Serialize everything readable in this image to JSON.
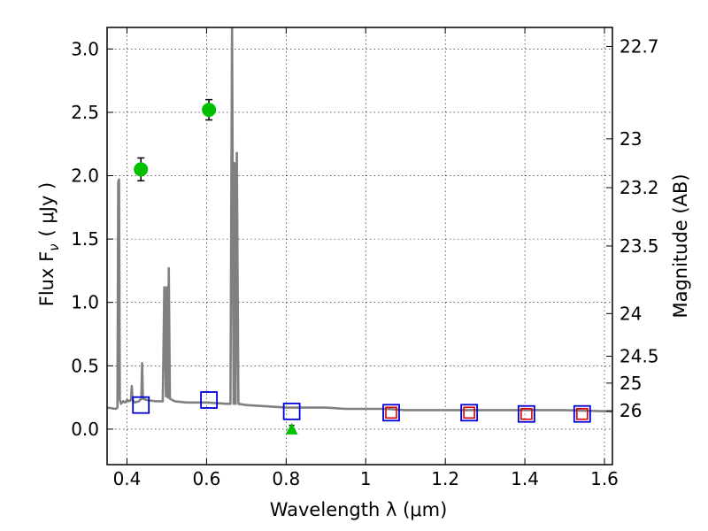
{
  "chart_data": {
    "type": "scatter",
    "xlabel": "Wavelength  λ (μm)",
    "ylabel": "Flux  F",
    "ylabel_sub": "ν",
    "ylabel_unit": "( μJy )",
    "ylabel_right": "Magnitude (AB)",
    "xlim": [
      0.35,
      1.62
    ],
    "ylim": [
      -0.28,
      3.17
    ],
    "grid": true,
    "x_ticks": [
      {
        "value": 0.4,
        "label": "0.4"
      },
      {
        "value": 0.6,
        "label": "0.6"
      },
      {
        "value": 0.8,
        "label": "0.8"
      },
      {
        "value": 1.0,
        "label": "1"
      },
      {
        "value": 1.2,
        "label": "1.2"
      },
      {
        "value": 1.4,
        "label": "1.4"
      },
      {
        "value": 1.6,
        "label": "1.6"
      }
    ],
    "y_ticks": [
      {
        "value": 0.0,
        "label": "0.0"
      },
      {
        "value": 0.5,
        "label": "0.5"
      },
      {
        "value": 1.0,
        "label": "1.0"
      },
      {
        "value": 1.5,
        "label": "1.5"
      },
      {
        "value": 2.0,
        "label": "2.0"
      },
      {
        "value": 2.5,
        "label": "2.5"
      },
      {
        "value": 3.0,
        "label": "3.0"
      }
    ],
    "right_ticks": [
      {
        "mag": 22.7,
        "label": "22.7"
      },
      {
        "mag": 23.0,
        "label": "23"
      },
      {
        "mag": 23.2,
        "label": "23.2"
      },
      {
        "mag": 23.5,
        "label": "23.5"
      },
      {
        "mag": 24.0,
        "label": "24"
      },
      {
        "mag": 24.5,
        "label": "24.5"
      },
      {
        "mag": 25.0,
        "label": "25"
      },
      {
        "mag": 26.0,
        "label": "26"
      }
    ],
    "colors": {
      "spectrum": "#808080",
      "observed": "#00c000",
      "model_box": "#0000dd",
      "model_small_box": "#dd0000"
    },
    "series": [
      {
        "name": "model spectrum",
        "kind": "line",
        "points": [
          [
            0.35,
            0.17
          ],
          [
            0.372,
            0.16
          ],
          [
            0.376,
            0.17
          ],
          [
            0.378,
            1.95
          ],
          [
            0.38,
            1.97
          ],
          [
            0.382,
            0.23
          ],
          [
            0.385,
            0.2
          ],
          [
            0.39,
            0.22
          ],
          [
            0.395,
            0.21
          ],
          [
            0.4,
            0.23
          ],
          [
            0.405,
            0.22
          ],
          [
            0.41,
            0.23
          ],
          [
            0.412,
            0.34
          ],
          [
            0.414,
            0.23
          ],
          [
            0.42,
            0.21
          ],
          [
            0.43,
            0.22
          ],
          [
            0.436,
            0.24
          ],
          [
            0.438,
            0.52
          ],
          [
            0.44,
            0.24
          ],
          [
            0.45,
            0.23
          ],
          [
            0.47,
            0.22
          ],
          [
            0.49,
            0.22
          ],
          [
            0.494,
            1.12
          ],
          [
            0.498,
            0.26
          ],
          [
            0.5,
            1.12
          ],
          [
            0.503,
            0.25
          ],
          [
            0.505,
            1.27
          ],
          [
            0.508,
            0.24
          ],
          [
            0.52,
            0.22
          ],
          [
            0.55,
            0.21
          ],
          [
            0.6,
            0.21
          ],
          [
            0.65,
            0.2
          ],
          [
            0.66,
            0.2
          ],
          [
            0.664,
            3.17
          ],
          [
            0.668,
            0.2
          ],
          [
            0.67,
            2.1
          ],
          [
            0.673,
            0.2
          ],
          [
            0.676,
            2.18
          ],
          [
            0.68,
            0.2
          ],
          [
            0.7,
            0.19
          ],
          [
            0.75,
            0.18
          ],
          [
            0.8,
            0.17
          ],
          [
            0.85,
            0.17
          ],
          [
            0.9,
            0.17
          ],
          [
            0.95,
            0.16
          ],
          [
            1.0,
            0.16
          ],
          [
            1.05,
            0.16
          ],
          [
            1.1,
            0.15
          ],
          [
            1.2,
            0.15
          ],
          [
            1.3,
            0.15
          ],
          [
            1.4,
            0.15
          ],
          [
            1.5,
            0.15
          ],
          [
            1.62,
            0.14
          ]
        ]
      },
      {
        "name": "observed photometry",
        "kind": "points",
        "points": [
          {
            "x": 0.435,
            "y": 2.05,
            "err": 0.09
          },
          {
            "x": 0.606,
            "y": 2.52,
            "err": 0.08
          }
        ]
      },
      {
        "name": "upper limit",
        "kind": "triangle",
        "points": [
          {
            "x": 0.814,
            "y": 0.0,
            "err": 0.03
          }
        ]
      },
      {
        "name": "model photometry",
        "kind": "squares",
        "points": [
          {
            "x": 0.435,
            "y": 0.19
          },
          {
            "x": 0.606,
            "y": 0.23
          },
          {
            "x": 0.814,
            "y": 0.14
          },
          {
            "x": 1.064,
            "y": 0.13
          },
          {
            "x": 1.26,
            "y": 0.13
          },
          {
            "x": 1.404,
            "y": 0.12
          },
          {
            "x": 1.544,
            "y": 0.12
          }
        ]
      },
      {
        "name": "model photometry (small)",
        "kind": "small_squares",
        "points": [
          {
            "x": 1.064,
            "y": 0.13
          },
          {
            "x": 1.26,
            "y": 0.13
          },
          {
            "x": 1.404,
            "y": 0.12
          },
          {
            "x": 1.544,
            "y": 0.12
          }
        ]
      }
    ]
  }
}
